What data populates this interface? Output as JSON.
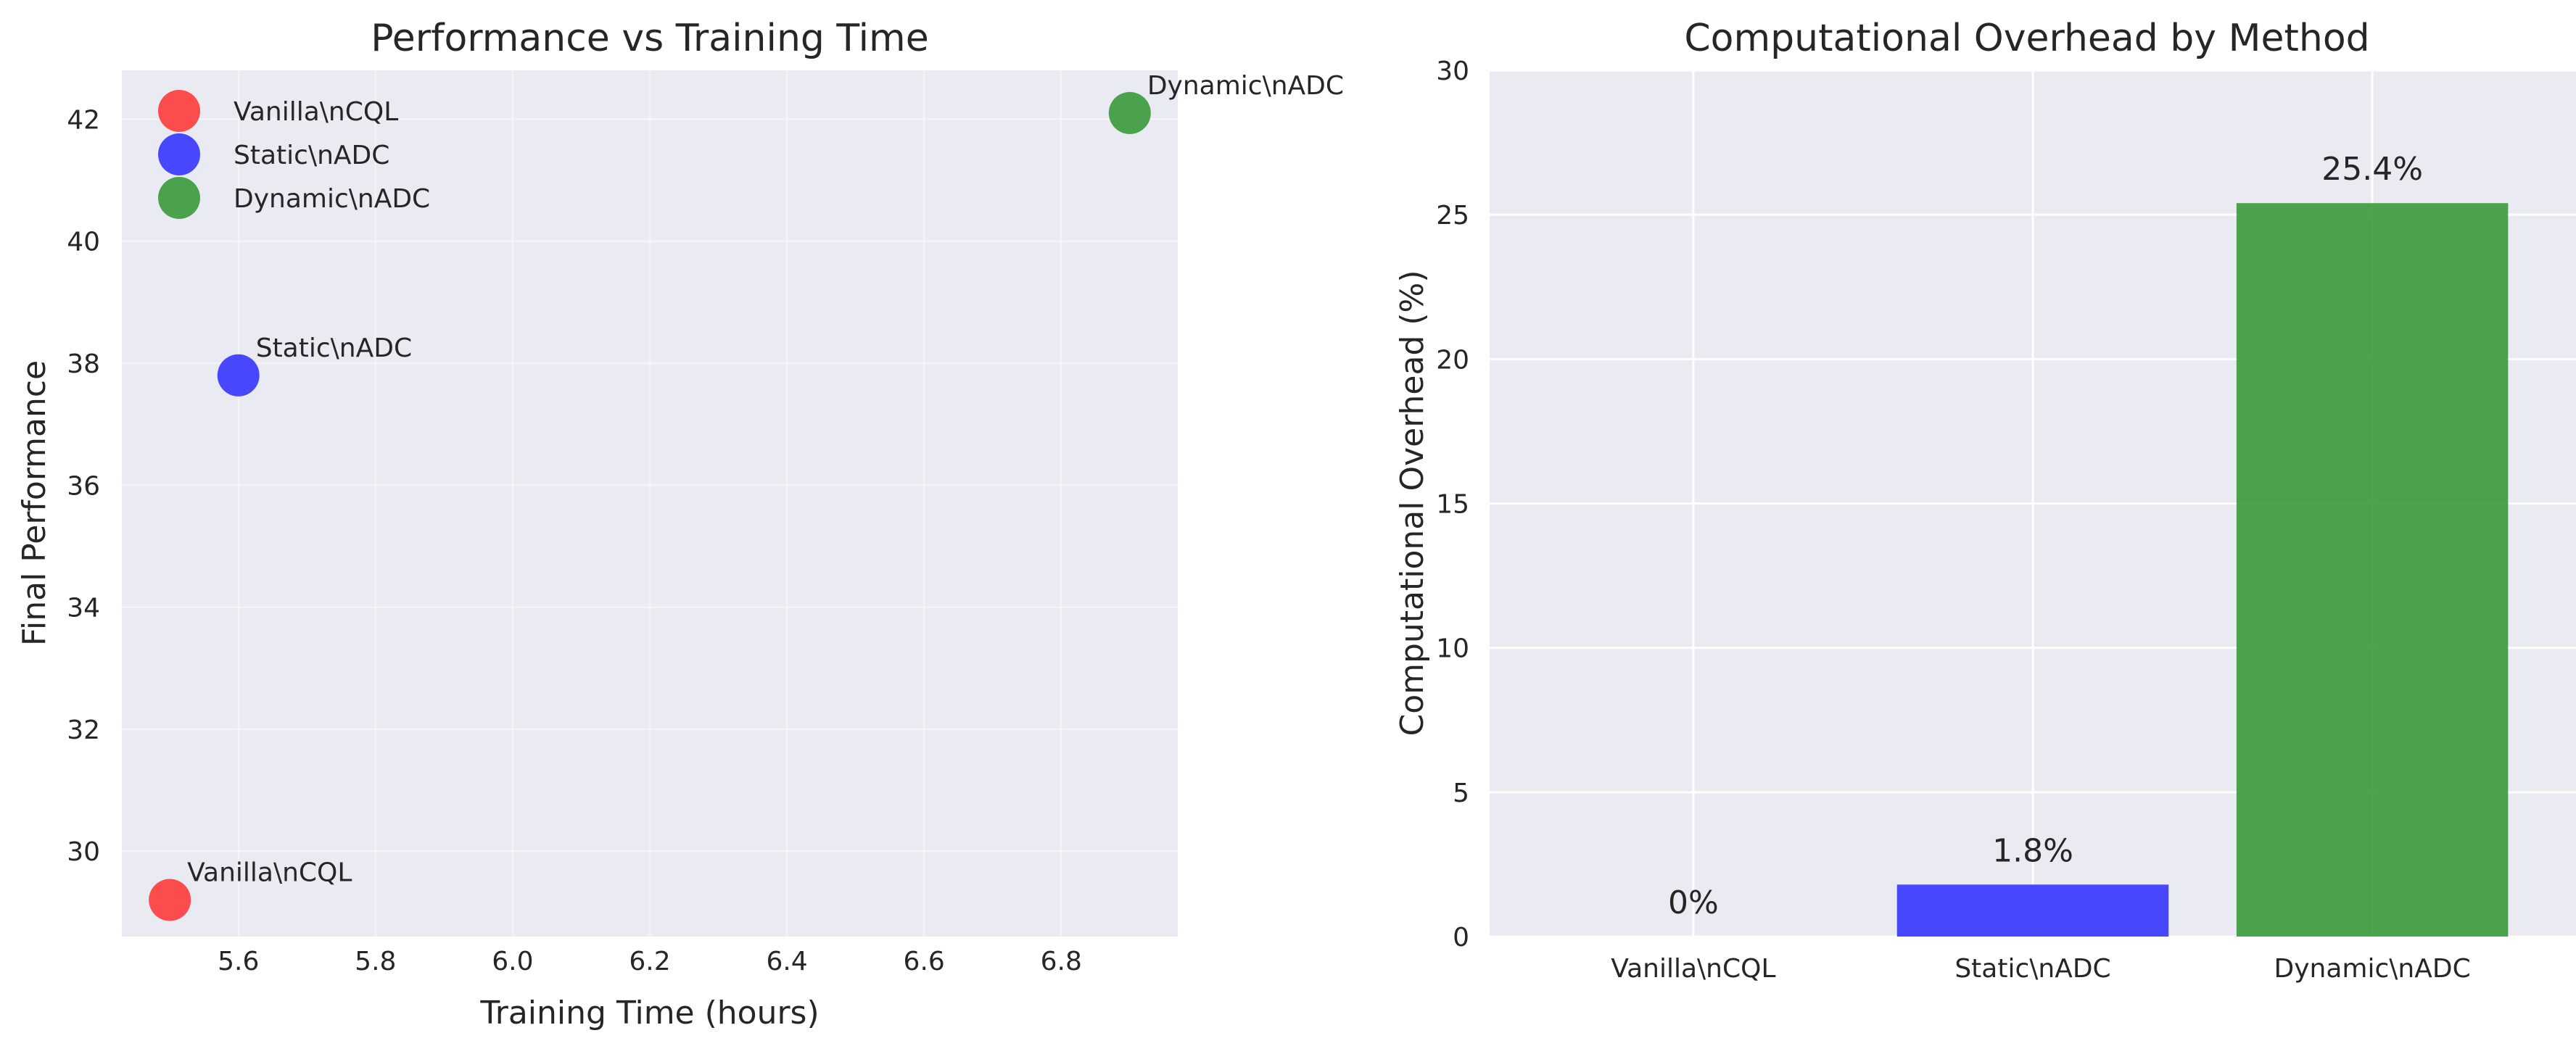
{
  "chart_data": [
    {
      "type": "scatter",
      "title": "Performance vs Training Time",
      "xlabel": "Training Time (hours)",
      "ylabel": "Final Performance",
      "xlim": [
        5.43,
        6.97
      ],
      "ylim": [
        28.6,
        42.8
      ],
      "xticks": [
        "5.6",
        "5.8",
        "6.0",
        "6.2",
        "6.4",
        "6.6",
        "6.8"
      ],
      "yticks": [
        "30",
        "32",
        "34",
        "36",
        "38",
        "40",
        "42"
      ],
      "grid": true,
      "legend_position": "top-left",
      "series": [
        {
          "name": "Vanilla\\nCQL",
          "x": 5.5,
          "y": 29.2,
          "color": "#ff3b3b"
        },
        {
          "name": "Static\\nADC",
          "x": 5.6,
          "y": 37.8,
          "color": "#3535ff"
        },
        {
          "name": "Dynamic\\nADC",
          "x": 6.9,
          "y": 42.1,
          "color": "#3a9a3a"
        }
      ]
    },
    {
      "type": "bar",
      "title": "Computational Overhead by Method",
      "xlabel": "",
      "ylabel": "Computational Overhead (%)",
      "ylim": [
        0,
        30
      ],
      "yticks": [
        "0",
        "5",
        "10",
        "15",
        "20",
        "25",
        "30"
      ],
      "grid": true,
      "categories": [
        "Vanilla\\nCQL",
        "Static\\nADC",
        "Dynamic\\nADC"
      ],
      "values": [
        0,
        1.8,
        25.4
      ],
      "labels": [
        "0%",
        "1.8%",
        "25.4%"
      ],
      "colors": [
        "#ff3b3b",
        "#3535ff",
        "#3a9a3a"
      ]
    }
  ]
}
